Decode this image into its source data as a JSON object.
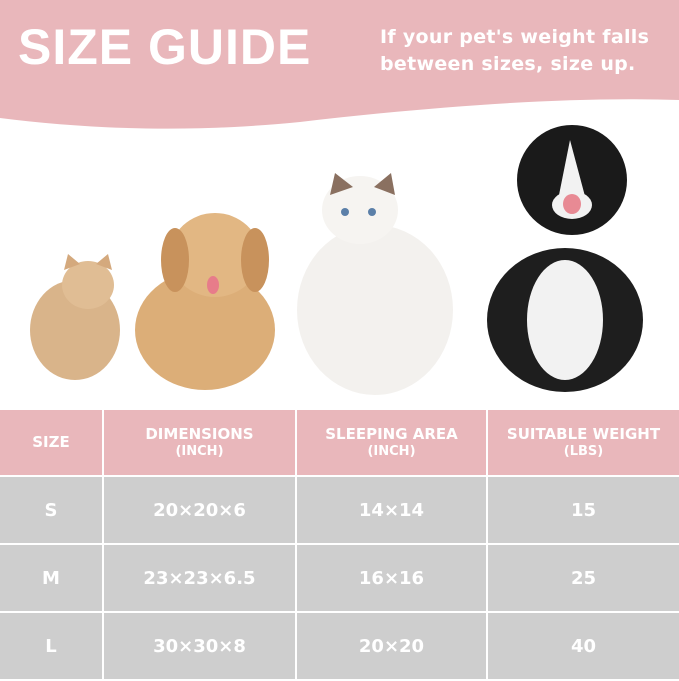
{
  "header": {
    "title": "SIZE GUIDE",
    "note_line1": "If your pet's weight falls",
    "note_line2": "between sizes, size up.",
    "color": "#e9b7bb"
  },
  "pets": [
    "cat-small",
    "dog-fluffy",
    "cat-ragdoll",
    "dog-border-collie"
  ],
  "table": {
    "headers": [
      {
        "label": "SIZE",
        "unit": ""
      },
      {
        "label": "DIMENSIONS",
        "unit": "(INCH)"
      },
      {
        "label": "SLEEPING AREA",
        "unit": "(INCH)"
      },
      {
        "label": "SUITABLE WEIGHT",
        "unit": "(LBS)"
      }
    ],
    "rows": [
      [
        "S",
        "20×20×6",
        "14×14",
        "15"
      ],
      [
        "M",
        "23×23×6.5",
        "16×16",
        "25"
      ],
      [
        "L",
        "30×30×8",
        "20×20",
        "40"
      ]
    ],
    "header_color": "#e9b7bb",
    "row_color": "#cecece"
  }
}
